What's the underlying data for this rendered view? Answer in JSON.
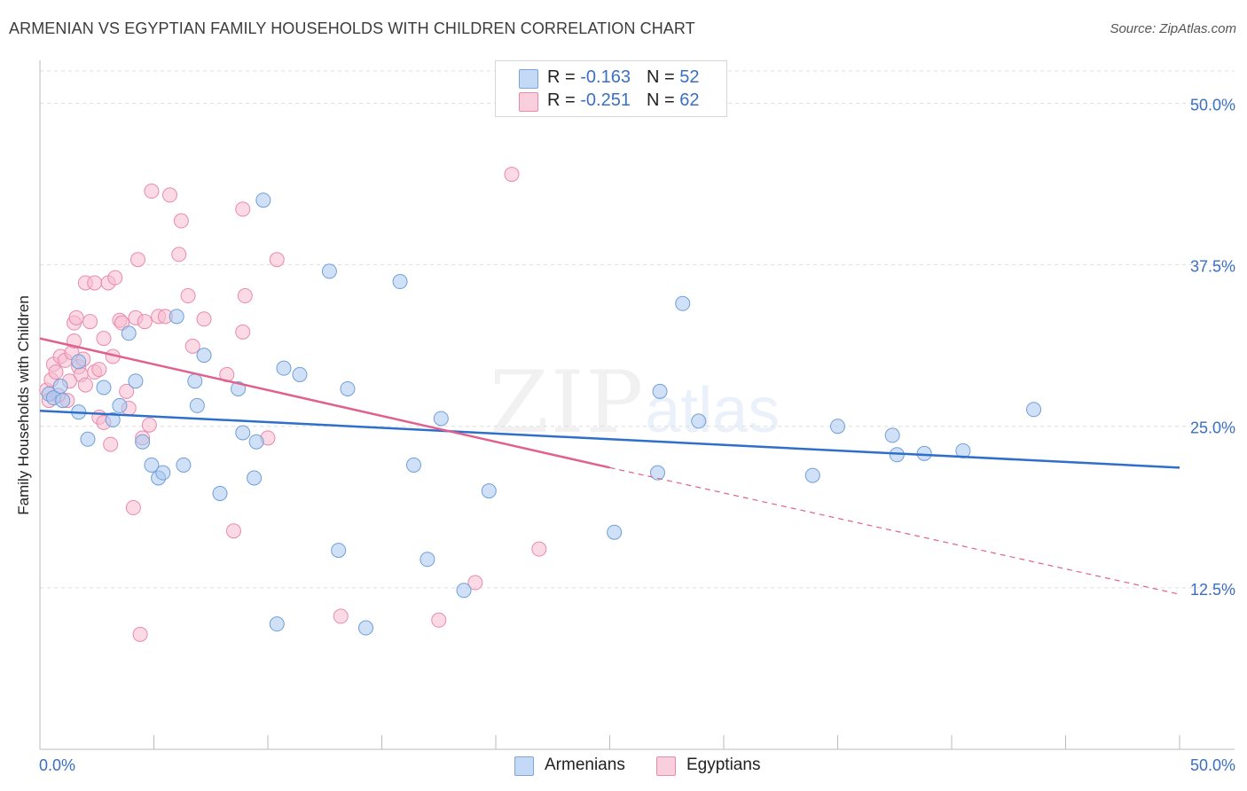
{
  "title": "ARMENIAN VS EGYPTIAN FAMILY HOUSEHOLDS WITH CHILDREN CORRELATION CHART",
  "source": "Source: ZipAtlas.com",
  "watermark": {
    "zip": "ZIP",
    "atlas": "atlas"
  },
  "legend_top": [
    {
      "r_label": "R = ",
      "r_value": "-0.163",
      "n_label": "N = ",
      "n_value": "52"
    },
    {
      "r_label": "R = ",
      "r_value": "-0.251",
      "n_label": "N = ",
      "n_value": "62"
    }
  ],
  "legend_bottom": {
    "armenians": "Armenians",
    "egyptians": "Egyptians"
  },
  "colors": {
    "armenians_fill": "#a9c8f0",
    "armenians_stroke": "#6f9fd8",
    "armenians_line": "#2e6fcc",
    "egyptians_fill": "#f7bcd0",
    "egyptians_stroke": "#e98aab",
    "egyptians_line": "#e0608e",
    "tick_label": "#3a6fc4",
    "grid": "#dddddd"
  },
  "chart_data": {
    "type": "scatter",
    "title": "ARMENIAN VS EGYPTIAN FAMILY HOUSEHOLDS WITH CHILDREN CORRELATION CHART",
    "xlabel": "",
    "ylabel": "Family Households with Children",
    "xlim": [
      0,
      50
    ],
    "ylim": [
      0,
      52.5
    ],
    "x_tick_labels": [
      "0.0%",
      "50.0%"
    ],
    "y_ticks": [
      {
        "value": 12.5,
        "label": "12.5%"
      },
      {
        "value": 25.0,
        "label": "25.0%"
      },
      {
        "value": 37.5,
        "label": "37.5%"
      },
      {
        "value": 50.0,
        "label": "50.0%"
      }
    ],
    "series": [
      {
        "name": "Armenians",
        "R": -0.163,
        "N": 52,
        "trend": {
          "x_start": 0,
          "y_start": 26.2,
          "x_end": 50,
          "y_end": 21.8
        },
        "points": [
          [
            0.4,
            27.5
          ],
          [
            0.6,
            27.2
          ],
          [
            0.9,
            28.1
          ],
          [
            1.7,
            30.0
          ],
          [
            1.7,
            26.1
          ],
          [
            2.1,
            24.0
          ],
          [
            2.8,
            28.0
          ],
          [
            3.2,
            25.5
          ],
          [
            3.5,
            26.6
          ],
          [
            3.9,
            32.2
          ],
          [
            4.2,
            28.5
          ],
          [
            4.5,
            23.8
          ],
          [
            4.9,
            22.0
          ],
          [
            5.2,
            21.0
          ],
          [
            5.4,
            21.4
          ],
          [
            6.0,
            33.5
          ],
          [
            6.3,
            22.0
          ],
          [
            6.8,
            28.5
          ],
          [
            6.9,
            26.6
          ],
          [
            7.2,
            30.5
          ],
          [
            7.9,
            19.8
          ],
          [
            8.7,
            27.9
          ],
          [
            8.9,
            24.5
          ],
          [
            9.4,
            21.0
          ],
          [
            9.5,
            23.8
          ],
          [
            9.8,
            42.5
          ],
          [
            10.4,
            9.7
          ],
          [
            10.7,
            29.5
          ],
          [
            11.4,
            29.0
          ],
          [
            12.7,
            37.0
          ],
          [
            13.1,
            15.4
          ],
          [
            13.5,
            27.9
          ],
          [
            14.3,
            9.4
          ],
          [
            15.8,
            36.2
          ],
          [
            16.4,
            22.0
          ],
          [
            17.0,
            14.7
          ],
          [
            17.6,
            25.6
          ],
          [
            18.6,
            12.3
          ],
          [
            19.7,
            20.0
          ],
          [
            25.2,
            16.8
          ],
          [
            27.1,
            21.4
          ],
          [
            27.2,
            27.7
          ],
          [
            28.2,
            34.5
          ],
          [
            28.9,
            25.4
          ],
          [
            33.9,
            21.2
          ],
          [
            35.0,
            25.0
          ],
          [
            37.4,
            24.3
          ],
          [
            37.6,
            22.8
          ],
          [
            38.8,
            22.9
          ],
          [
            40.5,
            23.1
          ],
          [
            43.6,
            26.3
          ],
          [
            1.0,
            27.0
          ]
        ]
      },
      {
        "name": "Egyptians",
        "R": -0.251,
        "N": 62,
        "trend": {
          "x_start": 0,
          "y_start": 31.8,
          "x_end": 25,
          "y_end": 21.8,
          "dashed_to_x": 50,
          "dashed_to_y": 12.0
        },
        "points": [
          [
            0.3,
            27.8
          ],
          [
            0.4,
            27.0
          ],
          [
            0.5,
            28.6
          ],
          [
            0.6,
            29.8
          ],
          [
            0.7,
            29.2
          ],
          [
            0.9,
            30.4
          ],
          [
            1.1,
            30.1
          ],
          [
            1.2,
            27.0
          ],
          [
            1.4,
            30.7
          ],
          [
            1.5,
            31.6
          ],
          [
            1.5,
            33.0
          ],
          [
            1.7,
            29.6
          ],
          [
            1.8,
            29.0
          ],
          [
            1.9,
            30.2
          ],
          [
            2.0,
            36.1
          ],
          [
            2.0,
            28.2
          ],
          [
            2.2,
            33.1
          ],
          [
            2.4,
            29.2
          ],
          [
            2.4,
            36.1
          ],
          [
            2.6,
            29.4
          ],
          [
            2.6,
            25.7
          ],
          [
            2.8,
            25.3
          ],
          [
            2.8,
            31.8
          ],
          [
            3.0,
            36.1
          ],
          [
            3.1,
            23.6
          ],
          [
            3.2,
            30.4
          ],
          [
            3.3,
            36.5
          ],
          [
            3.5,
            33.2
          ],
          [
            3.6,
            33.0
          ],
          [
            3.8,
            27.7
          ],
          [
            3.9,
            26.4
          ],
          [
            4.1,
            18.7
          ],
          [
            4.2,
            33.4
          ],
          [
            4.3,
            37.9
          ],
          [
            4.4,
            8.9
          ],
          [
            4.5,
            24.1
          ],
          [
            4.6,
            33.1
          ],
          [
            4.8,
            25.1
          ],
          [
            4.9,
            43.2
          ],
          [
            5.2,
            33.5
          ],
          [
            5.5,
            33.5
          ],
          [
            5.7,
            42.9
          ],
          [
            6.1,
            38.3
          ],
          [
            6.2,
            40.9
          ],
          [
            6.5,
            35.1
          ],
          [
            6.7,
            31.2
          ],
          [
            7.2,
            33.3
          ],
          [
            8.2,
            29.0
          ],
          [
            8.5,
            16.9
          ],
          [
            8.9,
            41.8
          ],
          [
            8.9,
            32.3
          ],
          [
            9.0,
            35.1
          ],
          [
            10.0,
            24.1
          ],
          [
            10.4,
            37.9
          ],
          [
            13.2,
            10.3
          ],
          [
            17.5,
            10.0
          ],
          [
            19.1,
            12.9
          ],
          [
            20.7,
            44.5
          ],
          [
            21.9,
            15.5
          ],
          [
            1.6,
            33.4
          ],
          [
            0.8,
            27.4
          ],
          [
            1.3,
            28.5
          ]
        ]
      }
    ]
  },
  "y_axis_label": "Family Households with Children"
}
